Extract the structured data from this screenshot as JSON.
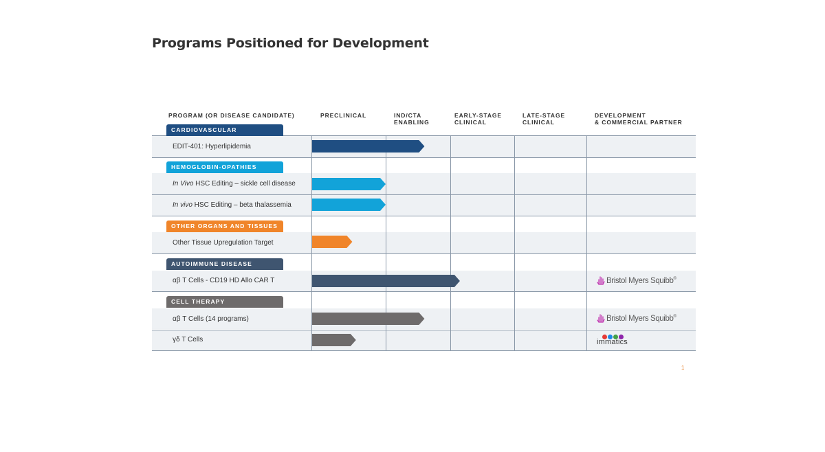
{
  "title": "Programs Positioned for Development",
  "page_number": "1",
  "headers": {
    "program": "PROGRAM (OR DISEASE CANDIDATE)",
    "preclinical": "PRECLINICAL",
    "ind_cta": "IND/CTA\nENABLING",
    "early": "EARLY-STAGE\nCLINICAL",
    "late": "LATE-STAGE\nCLINICAL",
    "partner": "DEVELOPMENT\n& COMMERCIAL PARTNER"
  },
  "categories": [
    {
      "label": "CARDIOVASCULAR",
      "color": "#1f4e82"
    },
    {
      "label": "HEMOGLOBIN-OPATHIES",
      "color": "#12a3d9"
    },
    {
      "label": "OTHER ORGANS AND TISSUES",
      "color": "#f0852a"
    },
    {
      "label": "AUTOIMMUNE DISEASE",
      "color": "#3f5570"
    },
    {
      "label": "CELL THERAPY",
      "color": "#6e6b6b"
    }
  ],
  "programs": [
    {
      "italic": "",
      "label": "EDIT-401: Hyperlipidemia"
    },
    {
      "italic": "In Vivo",
      "label": " HSC Editing – sickle cell disease"
    },
    {
      "italic": "In vivo",
      "label": " HSC Editing – beta thalassemia"
    },
    {
      "italic": "",
      "label": "Other Tissue Upregulation Target"
    },
    {
      "italic": "",
      "label": "αβ T Cells - CD19 HD Allo CAR T"
    },
    {
      "italic": "",
      "label": "αβ T Cells (14 programs)"
    },
    {
      "italic": "",
      "label": "γδ T Cells"
    }
  ],
  "partners": {
    "bms": "Bristol Myers Squibb",
    "bms_mark": "®",
    "immatics": "immatics",
    "immatics_dots": [
      "#e53935",
      "#1e88e5",
      "#43a047",
      "#8e24aa"
    ]
  },
  "chart_data": {
    "type": "bar",
    "orientation": "horizontal",
    "stages": [
      "PRECLINICAL",
      "IND/CTA ENABLING",
      "EARLY-STAGE CLINICAL",
      "LATE-STAGE CLINICAL"
    ],
    "xlim": [
      0,
      4
    ],
    "grid": true,
    "series": [
      {
        "program": "EDIT-401: Hyperlipidemia",
        "category": "CARDIOVASCULAR",
        "value": 1.6,
        "color": "#1f4e82"
      },
      {
        "program": "In Vivo HSC Editing – sickle cell disease",
        "category": "HEMOGLOBIN-OPATHIES",
        "value": 1.0,
        "color": "#12a3d9"
      },
      {
        "program": "In vivo HSC Editing – beta thalassemia",
        "category": "HEMOGLOBIN-OPATHIES",
        "value": 1.0,
        "color": "#12a3d9"
      },
      {
        "program": "Other Tissue Upregulation Target",
        "category": "OTHER ORGANS AND TISSUES",
        "value": 0.55,
        "color": "#f0852a"
      },
      {
        "program": "αβ T Cells - CD19 HD Allo CAR T",
        "category": "AUTOIMMUNE DISEASE",
        "value": 2.15,
        "color": "#3f5570"
      },
      {
        "program": "αβ T Cells (14 programs)",
        "category": "CELL THERAPY",
        "value": 1.6,
        "color": "#6e6b6b"
      },
      {
        "program": "γδ T Cells",
        "category": "CELL THERAPY",
        "value": 0.6,
        "color": "#6e6b6b"
      }
    ]
  }
}
